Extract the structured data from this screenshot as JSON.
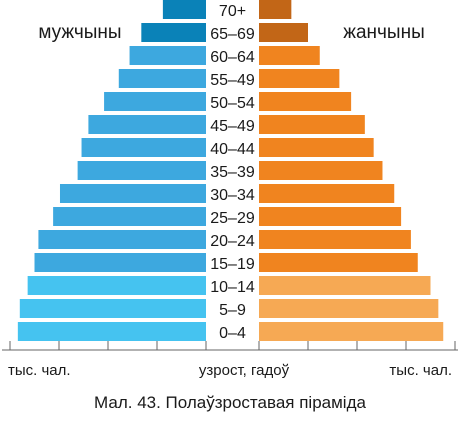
{
  "chart_data": {
    "type": "bar",
    "subtype": "population-pyramid",
    "title": "Мал. 43. Полаўзроставая піраміда",
    "categories": [
      "0–4",
      "5–9",
      "10–14",
      "15–19",
      "20–24",
      "25–29",
      "30–34",
      "35–39",
      "40–44",
      "45–49",
      "50–54",
      "55–49",
      "60–64",
      "65–69",
      "70+"
    ],
    "series": [
      {
        "name": "мужчыны",
        "side": "left",
        "values": [
          192,
          190,
          182,
          175,
          171,
          156,
          149,
          131,
          127,
          120,
          104,
          89,
          78,
          66,
          44
        ],
        "color_main": "#3da8df",
        "color_light": "#45c3f0",
        "color_dark": "#0a82b8"
      },
      {
        "name": "жанчыны",
        "side": "right",
        "values": [
          188,
          183,
          175,
          162,
          155,
          145,
          138,
          126,
          117,
          108,
          94,
          82,
          62,
          50,
          33
        ],
        "color_main": "#f0841f",
        "color_light": "#f6a954",
        "color_dark": "#c26617"
      }
    ],
    "xlim": [
      0,
      200
    ],
    "light_categories": [
      "0–4",
      "5–9",
      "10–14"
    ],
    "dark_categories": [
      "65–69",
      "70+"
    ],
    "xlabel_left": "тыс. чал.",
    "xlabel_center": "узрост, гадоў",
    "xlabel_right": "тыс. чал.",
    "legend_placement": "top",
    "grid": false
  }
}
